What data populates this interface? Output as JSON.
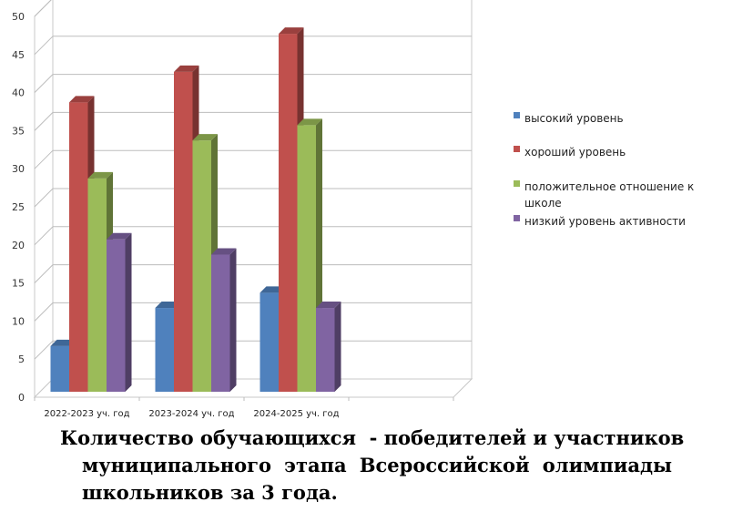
{
  "chart_data": {
    "type": "bar",
    "categories": [
      "2022-2023 уч. год",
      "2023-2024 уч. год",
      "2024-2025 уч. год"
    ],
    "series": [
      {
        "name": "высокий уровень",
        "values": [
          6,
          11,
          13
        ],
        "color": "#4f81bd"
      },
      {
        "name": "хороший уровень",
        "values": [
          38,
          42,
          47
        ],
        "color": "#c0504d"
      },
      {
        "name": "положительное отношение к школе",
        "values": [
          28,
          33,
          35
        ],
        "color": "#9bbb59"
      },
      {
        "name": "низкий уровень активности",
        "values": [
          20,
          18,
          11
        ],
        "color": "#8064a2"
      }
    ],
    "yticks": [
      "0",
      "5",
      "10",
      "15",
      "20",
      "25",
      "30",
      "35",
      "40",
      "45",
      "50"
    ],
    "ylim": [
      0,
      50
    ],
    "grid": true,
    "legend_position": "right",
    "title": "",
    "xlabel": "",
    "ylabel": ""
  },
  "legend": {
    "items": [
      "высокий уровень",
      "хороший уровень",
      "положительное отношение к",
      "школе",
      "низкий уровень активности"
    ]
  },
  "caption": {
    "line1": "Количество обучающихся  - победителей и участников",
    "line2": "муниципального этапа Всероссийской олимпиады",
    "line3": "школьников за 3 года."
  }
}
